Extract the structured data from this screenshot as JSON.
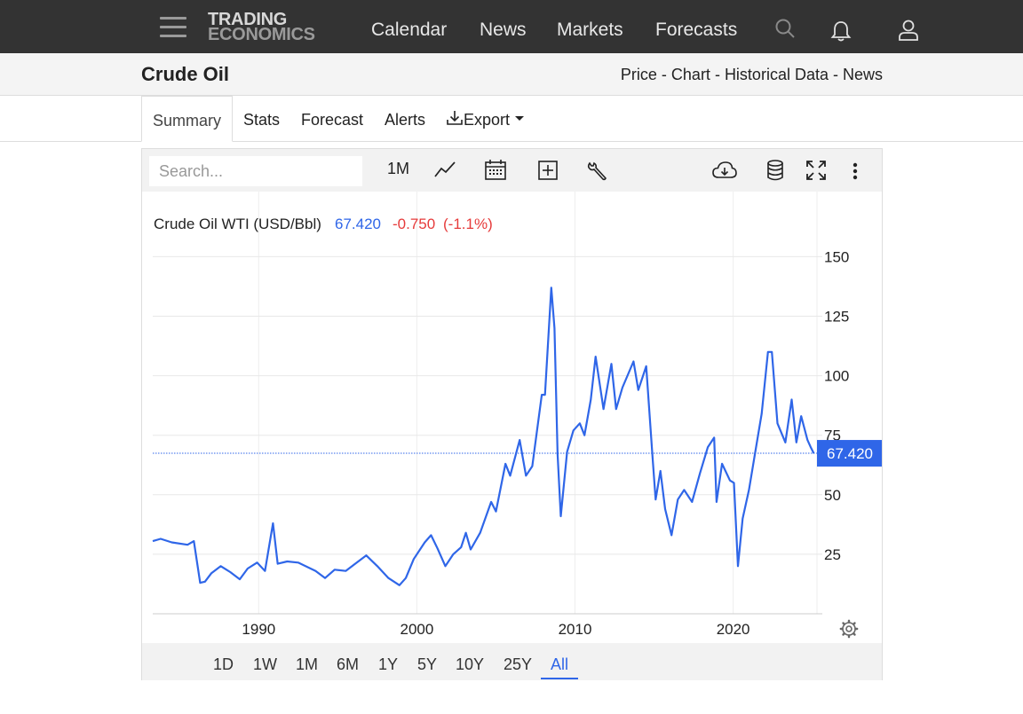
{
  "nav": {
    "logo_line1": "TRADING",
    "logo_line2": "ECONOMICS",
    "links": [
      "Calendar",
      "News",
      "Markets",
      "Forecasts"
    ]
  },
  "title_bar": {
    "title": "Crude Oil",
    "links": [
      "Price",
      "Chart",
      "Historical Data",
      "News"
    ],
    "separator": " - "
  },
  "tabs": [
    "Summary",
    "Stats",
    "Forecast",
    "Alerts",
    "Export"
  ],
  "toolbar": {
    "search_placeholder": "Search...",
    "interval": "1M",
    "icons": [
      "line-chart-icon",
      "calendar-icon",
      "add-indicator-icon",
      "wrench-icon",
      "cloud-download-icon",
      "database-icon",
      "fullscreen-icon",
      "more-vertical-icon"
    ]
  },
  "chart_header": {
    "label": "Crude Oil WTI (USD/Bbl)",
    "price": "67.420",
    "change": "-0.750",
    "change_pct": "(-1.1%)"
  },
  "range_buttons": [
    "1D",
    "1W",
    "1M",
    "6M",
    "1Y",
    "5Y",
    "10Y",
    "25Y",
    "All"
  ],
  "active_range": "All",
  "colors": {
    "line": "#2f66e8",
    "positive": "#2f66e8",
    "negative": "#e63b3b",
    "nav_bg": "#333333"
  },
  "chart_data": {
    "type": "line",
    "title": "Crude Oil WTI (USD/Bbl)",
    "xlabel": "",
    "ylabel": "",
    "xlim": [
      1983.3,
      2025.3
    ],
    "ylim": [
      0,
      155
    ],
    "x_ticks": [
      1990,
      2000,
      2010,
      2020
    ],
    "y_ticks": [
      25,
      50,
      75,
      100,
      125,
      150
    ],
    "y_axis_side": "right",
    "grid": true,
    "last_value": 67.42,
    "series": [
      {
        "name": "",
        "points": [
          [
            1983.3,
            30.5
          ],
          [
            1983.8,
            31.5
          ],
          [
            1984.5,
            30
          ],
          [
            1985.5,
            29
          ],
          [
            1985.9,
            30.5
          ],
          [
            1986.3,
            13
          ],
          [
            1986.6,
            13.5
          ],
          [
            1987.0,
            17
          ],
          [
            1987.6,
            20
          ],
          [
            1988.2,
            17.5
          ],
          [
            1988.8,
            14.5
          ],
          [
            1989.3,
            19
          ],
          [
            1989.9,
            21.5
          ],
          [
            1990.4,
            18
          ],
          [
            1990.8,
            34
          ],
          [
            1990.9,
            38
          ],
          [
            1991.2,
            21
          ],
          [
            1991.8,
            22
          ],
          [
            1992.5,
            21.5
          ],
          [
            1993.6,
            18
          ],
          [
            1994.2,
            15
          ],
          [
            1994.8,
            18.5
          ],
          [
            1995.5,
            18
          ],
          [
            1996.8,
            24.5
          ],
          [
            1997.5,
            20
          ],
          [
            1998.2,
            15
          ],
          [
            1998.9,
            12
          ],
          [
            1999.3,
            15
          ],
          [
            1999.8,
            23
          ],
          [
            2000.5,
            30
          ],
          [
            2000.9,
            33
          ],
          [
            2001.3,
            27.5
          ],
          [
            2001.8,
            20
          ],
          [
            2002.3,
            25
          ],
          [
            2002.8,
            28
          ],
          [
            2003.1,
            34
          ],
          [
            2003.4,
            27
          ],
          [
            2004.0,
            34
          ],
          [
            2004.7,
            47
          ],
          [
            2005.0,
            43
          ],
          [
            2005.6,
            63
          ],
          [
            2005.9,
            58
          ],
          [
            2006.5,
            73
          ],
          [
            2006.9,
            58
          ],
          [
            2007.3,
            62
          ],
          [
            2007.9,
            92
          ],
          [
            2008.1,
            92
          ],
          [
            2008.5,
            137
          ],
          [
            2008.7,
            120
          ],
          [
            2008.9,
            67
          ],
          [
            2009.1,
            41
          ],
          [
            2009.5,
            68
          ],
          [
            2009.9,
            77
          ],
          [
            2010.3,
            80
          ],
          [
            2010.6,
            75
          ],
          [
            2011.0,
            90
          ],
          [
            2011.3,
            108
          ],
          [
            2011.8,
            86
          ],
          [
            2012.3,
            105
          ],
          [
            2012.6,
            86
          ],
          [
            2013.0,
            95
          ],
          [
            2013.7,
            106
          ],
          [
            2014.0,
            94
          ],
          [
            2014.5,
            104
          ],
          [
            2014.9,
            66
          ],
          [
            2015.1,
            48
          ],
          [
            2015.4,
            60
          ],
          [
            2015.7,
            44
          ],
          [
            2016.1,
            33
          ],
          [
            2016.5,
            48
          ],
          [
            2016.9,
            52
          ],
          [
            2017.4,
            47
          ],
          [
            2017.9,
            59
          ],
          [
            2018.4,
            70
          ],
          [
            2018.8,
            74
          ],
          [
            2018.95,
            47
          ],
          [
            2019.3,
            63
          ],
          [
            2019.8,
            56
          ],
          [
            2020.05,
            55
          ],
          [
            2020.3,
            20
          ],
          [
            2020.6,
            40
          ],
          [
            2021.0,
            52
          ],
          [
            2021.5,
            72
          ],
          [
            2021.8,
            84
          ],
          [
            2022.2,
            110
          ],
          [
            2022.45,
            110
          ],
          [
            2022.8,
            80
          ],
          [
            2023.3,
            72
          ],
          [
            2023.7,
            90
          ],
          [
            2024.0,
            72
          ],
          [
            2024.3,
            83
          ],
          [
            2024.7,
            73
          ],
          [
            2024.9,
            70
          ],
          [
            2025.1,
            67.42
          ]
        ]
      }
    ]
  }
}
